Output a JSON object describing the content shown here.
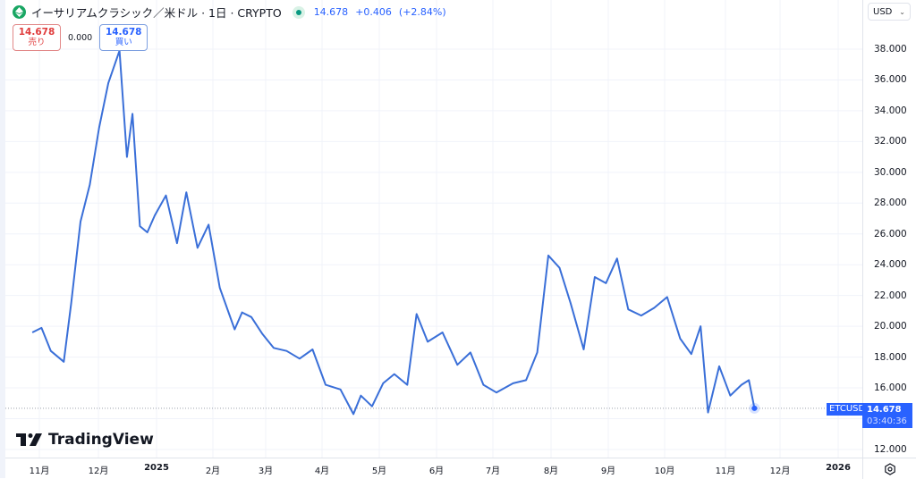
{
  "header": {
    "symbol_title": "イーサリアムクラシック／米ドル · 1日 · CRYPTO",
    "last_price": "14.678",
    "change": "+0.406",
    "change_pct": "(+2.84%)",
    "coin_icon": "ethereum-classic-icon",
    "status_icon": "market-open-dot-icon"
  },
  "trade": {
    "sell_price": "14.678",
    "sell_label": "売り",
    "spread": "0.000",
    "buy_price": "14.678",
    "buy_label": "買い"
  },
  "currency_select": {
    "value": "USD",
    "icon": "chevron-down-icon"
  },
  "price_label": {
    "symbol": "ETCUSD",
    "price": "14.678",
    "countdown": "03:40:36"
  },
  "logo": {
    "text": "TradingView"
  },
  "settings_icon": "gear-icon",
  "colors": {
    "line": "#3a6fd8",
    "accent": "#2962ff",
    "sell": "#e03c3c",
    "coin": "#19a663",
    "grid": "#f0f3fa"
  },
  "chart_data": {
    "type": "line",
    "title": "イーサリアムクラシック／米ドル · 1日 · CRYPTO",
    "xlabel": "",
    "ylabel": "USD",
    "ylim": [
      12,
      38
    ],
    "y_ticks": [
      "38.000",
      "36.000",
      "34.000",
      "32.000",
      "30.000",
      "28.000",
      "26.000",
      "24.000",
      "22.000",
      "20.000",
      "18.000",
      "16.000",
      "12.000"
    ],
    "x_ticks": [
      "11月",
      "12月",
      "2025",
      "2月",
      "3月",
      "4月",
      "5月",
      "6月",
      "7月",
      "8月",
      "9月",
      "10月",
      "11月",
      "12月",
      "2026"
    ],
    "grid": true,
    "legend": "none",
    "series": [
      {
        "name": "ETCUSD",
        "x": [
          "2024-10-15",
          "2024-10-20",
          "2024-10-25",
          "2024-11-01",
          "2024-11-05",
          "2024-11-10",
          "2024-11-15",
          "2024-11-20",
          "2024-11-25",
          "2024-12-01",
          "2024-12-05",
          "2024-12-08",
          "2024-12-12",
          "2024-12-16",
          "2024-12-20",
          "2024-12-26",
          "2025-01-01",
          "2025-01-06",
          "2025-01-12",
          "2025-01-18",
          "2025-01-24",
          "2025-02-01",
          "2025-02-05",
          "2025-02-10",
          "2025-02-16",
          "2025-02-22",
          "2025-03-01",
          "2025-03-08",
          "2025-03-15",
          "2025-03-22",
          "2025-03-30",
          "2025-04-06",
          "2025-04-10",
          "2025-04-16",
          "2025-04-22",
          "2025-04-28",
          "2025-05-05",
          "2025-05-10",
          "2025-05-16",
          "2025-05-24",
          "2025-06-01",
          "2025-06-08",
          "2025-06-15",
          "2025-06-22",
          "2025-07-01",
          "2025-07-08",
          "2025-07-14",
          "2025-07-20",
          "2025-07-26",
          "2025-08-01",
          "2025-08-08",
          "2025-08-14",
          "2025-08-20",
          "2025-08-26",
          "2025-09-01",
          "2025-09-08",
          "2025-09-15",
          "2025-09-22",
          "2025-09-29",
          "2025-10-05",
          "2025-10-10",
          "2025-10-14",
          "2025-10-20",
          "2025-10-26",
          "2025-11-01",
          "2025-11-05",
          "2025-11-08"
        ],
        "values": [
          19.6,
          19.9,
          18.4,
          17.7,
          21.5,
          26.8,
          29.2,
          32.9,
          35.8,
          37.9,
          31.0,
          33.8,
          26.5,
          26.1,
          27.2,
          28.5,
          25.4,
          28.7,
          25.1,
          26.6,
          22.5,
          19.8,
          20.9,
          20.6,
          19.5,
          18.6,
          18.4,
          17.9,
          18.5,
          16.2,
          15.9,
          14.3,
          15.5,
          14.8,
          16.3,
          16.9,
          16.2,
          20.8,
          19.0,
          19.6,
          17.5,
          18.3,
          16.2,
          15.7,
          16.3,
          16.5,
          18.3,
          24.6,
          23.8,
          21.5,
          18.5,
          23.2,
          22.8,
          24.4,
          21.1,
          20.7,
          21.2,
          21.9,
          19.2,
          18.2,
          20.0,
          14.4,
          17.4,
          15.5,
          16.2,
          16.5,
          14.678
        ]
      }
    ]
  }
}
